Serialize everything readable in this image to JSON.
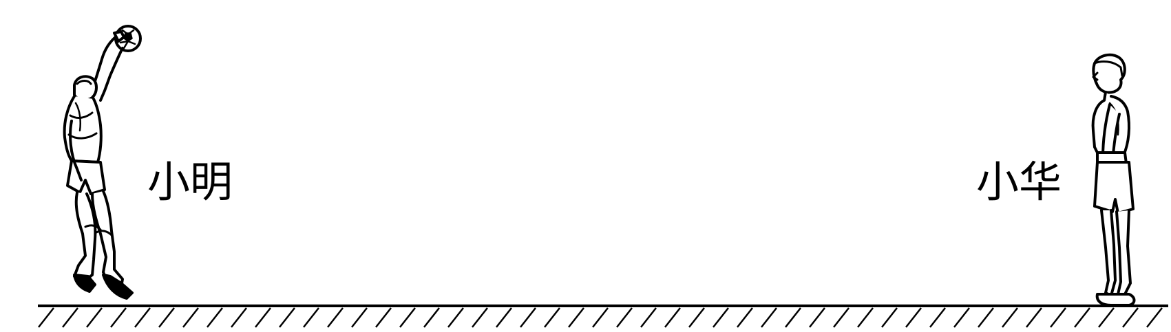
{
  "labels": {
    "left_person": "小明",
    "right_person": "小华"
  },
  "colors": {
    "ink": "#000000",
    "background": "#ffffff"
  },
  "icons": {
    "left_figure": "person-throwing-ball-icon",
    "right_figure": "person-standing-icon",
    "ball": "soccer-ball-icon",
    "ground": "hatched-ground-icon"
  }
}
